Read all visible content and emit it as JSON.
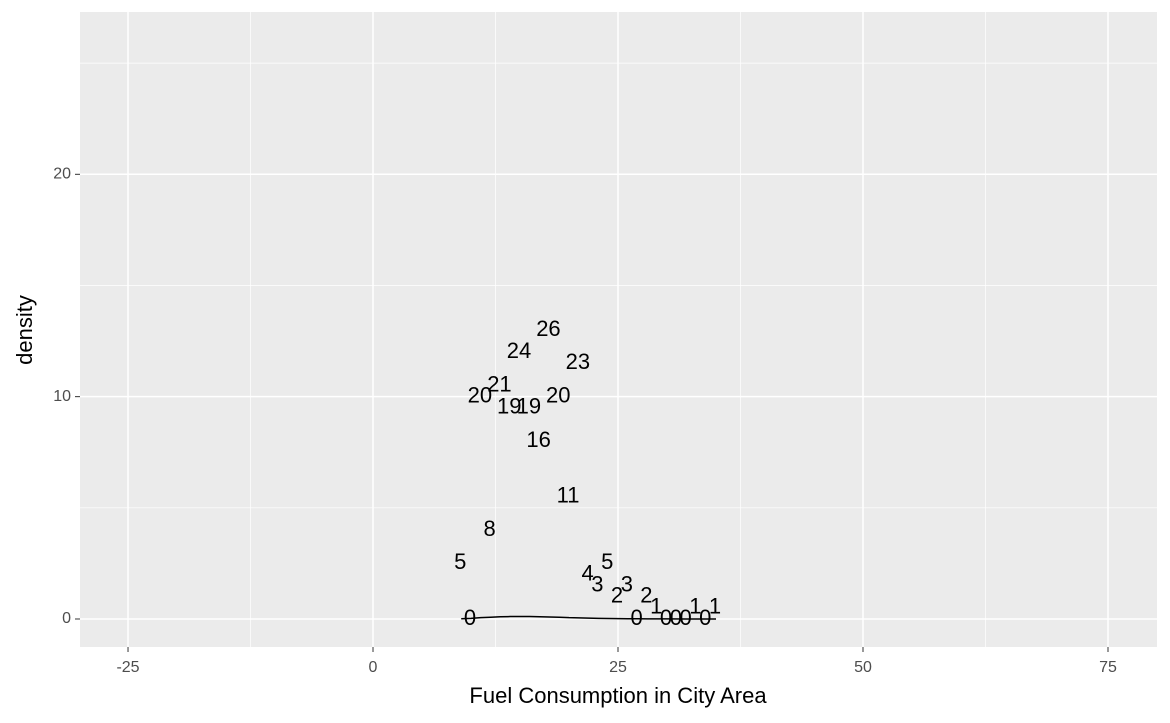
{
  "chart_data": {
    "type": "line",
    "x_label": "Fuel Consumption in City Area",
    "y_label": "density",
    "x": [
      9,
      10,
      11,
      12,
      13,
      14,
      15,
      16,
      17,
      18,
      19,
      20,
      21,
      22,
      23,
      24,
      25,
      26,
      27,
      28,
      30,
      32,
      35
    ],
    "values": [
      0.01,
      0.03,
      0.06,
      0.08,
      0.1,
      0.11,
      0.11,
      0.11,
      0.1,
      0.09,
      0.08,
      0.06,
      0.05,
      0.04,
      0.03,
      0.02,
      0.015,
      0.01,
      0.008,
      0.005,
      0.003,
      0.002,
      0.001
    ],
    "color": "#000000",
    "text_labels": {
      "x": [
        8.9,
        9.9,
        10.9,
        11.9,
        12.9,
        13.9,
        14.9,
        15.9,
        16.9,
        17.9,
        18.9,
        19.9,
        20.9,
        21.9,
        22.9,
        23.9,
        24.9,
        25.9,
        26.9,
        27.9,
        28.9,
        29.9,
        30.9,
        31.9,
        32.9,
        33.9,
        34.9
      ],
      "y": [
        2.5,
        0,
        10,
        4,
        10.5,
        9.5,
        12,
        9.5,
        8,
        13,
        10,
        5.5,
        11.5,
        2,
        1.5,
        2.5,
        1,
        1.5,
        0,
        1,
        0.5,
        0,
        0,
        0,
        0.5,
        0,
        0.5
      ],
      "text": [
        "5",
        "0",
        "20",
        "8",
        "21",
        "19",
        "24",
        "19",
        "16",
        "26",
        "20",
        "11",
        "23",
        "4",
        "3",
        "5",
        "2",
        "3",
        "0",
        "2",
        "1",
        "0",
        "0",
        "0",
        "1",
        "0",
        "1"
      ]
    },
    "xlim": [
      -29.9,
      80
    ],
    "ylim": [
      -1.26,
      27.3
    ],
    "xticks": [
      -25,
      0,
      25,
      50,
      75
    ],
    "yticks": [
      0,
      10,
      20
    ],
    "grid": true
  }
}
